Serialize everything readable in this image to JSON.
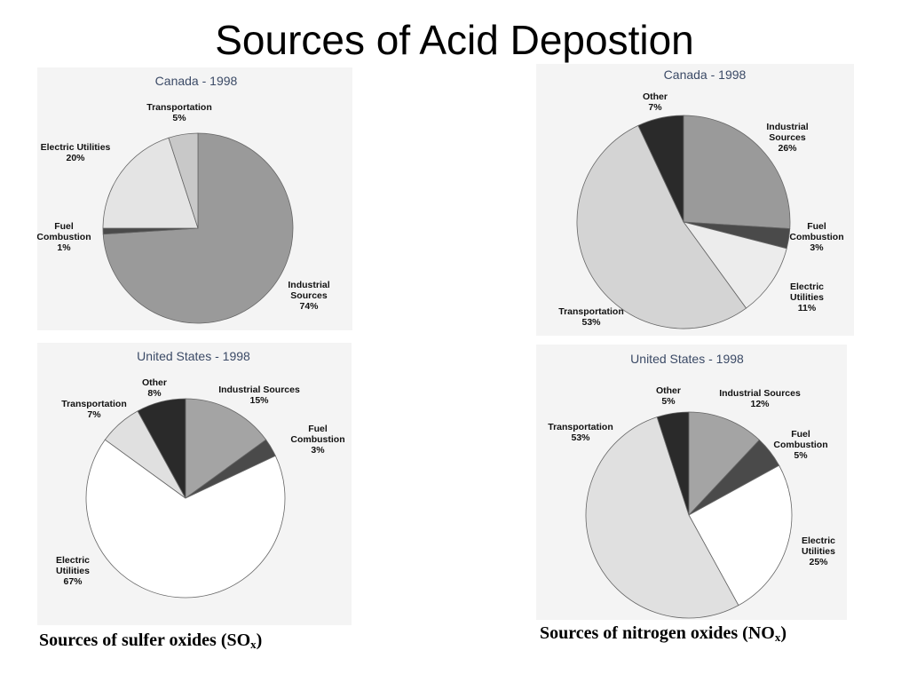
{
  "slide": {
    "title": "Sources of Acid Depostion"
  },
  "captions": {
    "sox_prefix": "Sources of sulfer oxides (SO",
    "sox_sub": "x",
    "sox_suffix": ")",
    "nox_prefix": "Sources of nitrogen oxides (NO",
    "nox_sub": "x",
    "nox_suffix": ")"
  },
  "chart_data": [
    {
      "id": "so2_canada",
      "type": "pie",
      "title": "Canada - 1998",
      "slices": [
        {
          "name": "Industrial Sources",
          "label": [
            "Industrial",
            "Sources",
            "74%"
          ],
          "value": 74,
          "color": "#9a9a9a"
        },
        {
          "name": "Fuel Combustion",
          "label": [
            "Fuel",
            "Combustion",
            "1%"
          ],
          "value": 1,
          "color": "#4a4a4a"
        },
        {
          "name": "Electric Utilities",
          "label": [
            "Electric Utilities",
            "20%"
          ],
          "value": 20,
          "color": "#e4e4e4"
        },
        {
          "name": "Transportation",
          "label": [
            "Transportation",
            "5%"
          ],
          "value": 5,
          "color": "#c8c8c8"
        }
      ]
    },
    {
      "id": "nox_canada",
      "type": "pie",
      "title": "Canada - 1998",
      "slices": [
        {
          "name": "Industrial Sources",
          "label": [
            "Industrial",
            "Sources",
            "26%"
          ],
          "value": 26,
          "color": "#9a9a9a"
        },
        {
          "name": "Fuel Combustion",
          "label": [
            "Fuel",
            "Combustion",
            "3%"
          ],
          "value": 3,
          "color": "#4a4a4a"
        },
        {
          "name": "Electric Utilities",
          "label": [
            "Electric",
            "Utilities",
            "11%"
          ],
          "value": 11,
          "color": "#ececec"
        },
        {
          "name": "Transportation",
          "label": [
            "Transportation",
            "53%"
          ],
          "value": 53,
          "color": "#d4d4d4"
        },
        {
          "name": "Other",
          "label": [
            "Other",
            "7%"
          ],
          "value": 7,
          "color": "#2a2a2a"
        }
      ]
    },
    {
      "id": "so2_us",
      "type": "pie",
      "title": "United States - 1998",
      "slices": [
        {
          "name": "Industrial Sources",
          "label": [
            "Industrial Sources",
            "15%"
          ],
          "value": 15,
          "color": "#a4a4a4"
        },
        {
          "name": "Fuel Combustion",
          "label": [
            "Fuel",
            "Combustion",
            "3%"
          ],
          "value": 3,
          "color": "#4a4a4a"
        },
        {
          "name": "Electric Utilities",
          "label": [
            "Electric",
            "Utilities",
            "67%"
          ],
          "value": 67,
          "color": "#ffffff"
        },
        {
          "name": "Transportation",
          "label": [
            "Transportation",
            "7%"
          ],
          "value": 7,
          "color": "#e0e0e0"
        },
        {
          "name": "Other",
          "label": [
            "Other",
            "8%"
          ],
          "value": 8,
          "color": "#2a2a2a"
        }
      ]
    },
    {
      "id": "nox_us",
      "type": "pie",
      "title": "United States - 1998",
      "slices": [
        {
          "name": "Industrial Sources",
          "label": [
            "Industrial Sources",
            "12%"
          ],
          "value": 12,
          "color": "#a4a4a4"
        },
        {
          "name": "Fuel Combustion",
          "label": [
            "Fuel",
            "Combustion",
            "5%"
          ],
          "value": 5,
          "color": "#4a4a4a"
        },
        {
          "name": "Electric Utilities",
          "label": [
            "Electric",
            "Utilities",
            "25%"
          ],
          "value": 25,
          "color": "#ffffff"
        },
        {
          "name": "Transportation",
          "label": [
            "Transportation",
            "53%"
          ],
          "value": 53,
          "color": "#e0e0e0"
        },
        {
          "name": "Other",
          "label": [
            "Other",
            "5%"
          ],
          "value": 5,
          "color": "#2a2a2a"
        }
      ]
    }
  ]
}
